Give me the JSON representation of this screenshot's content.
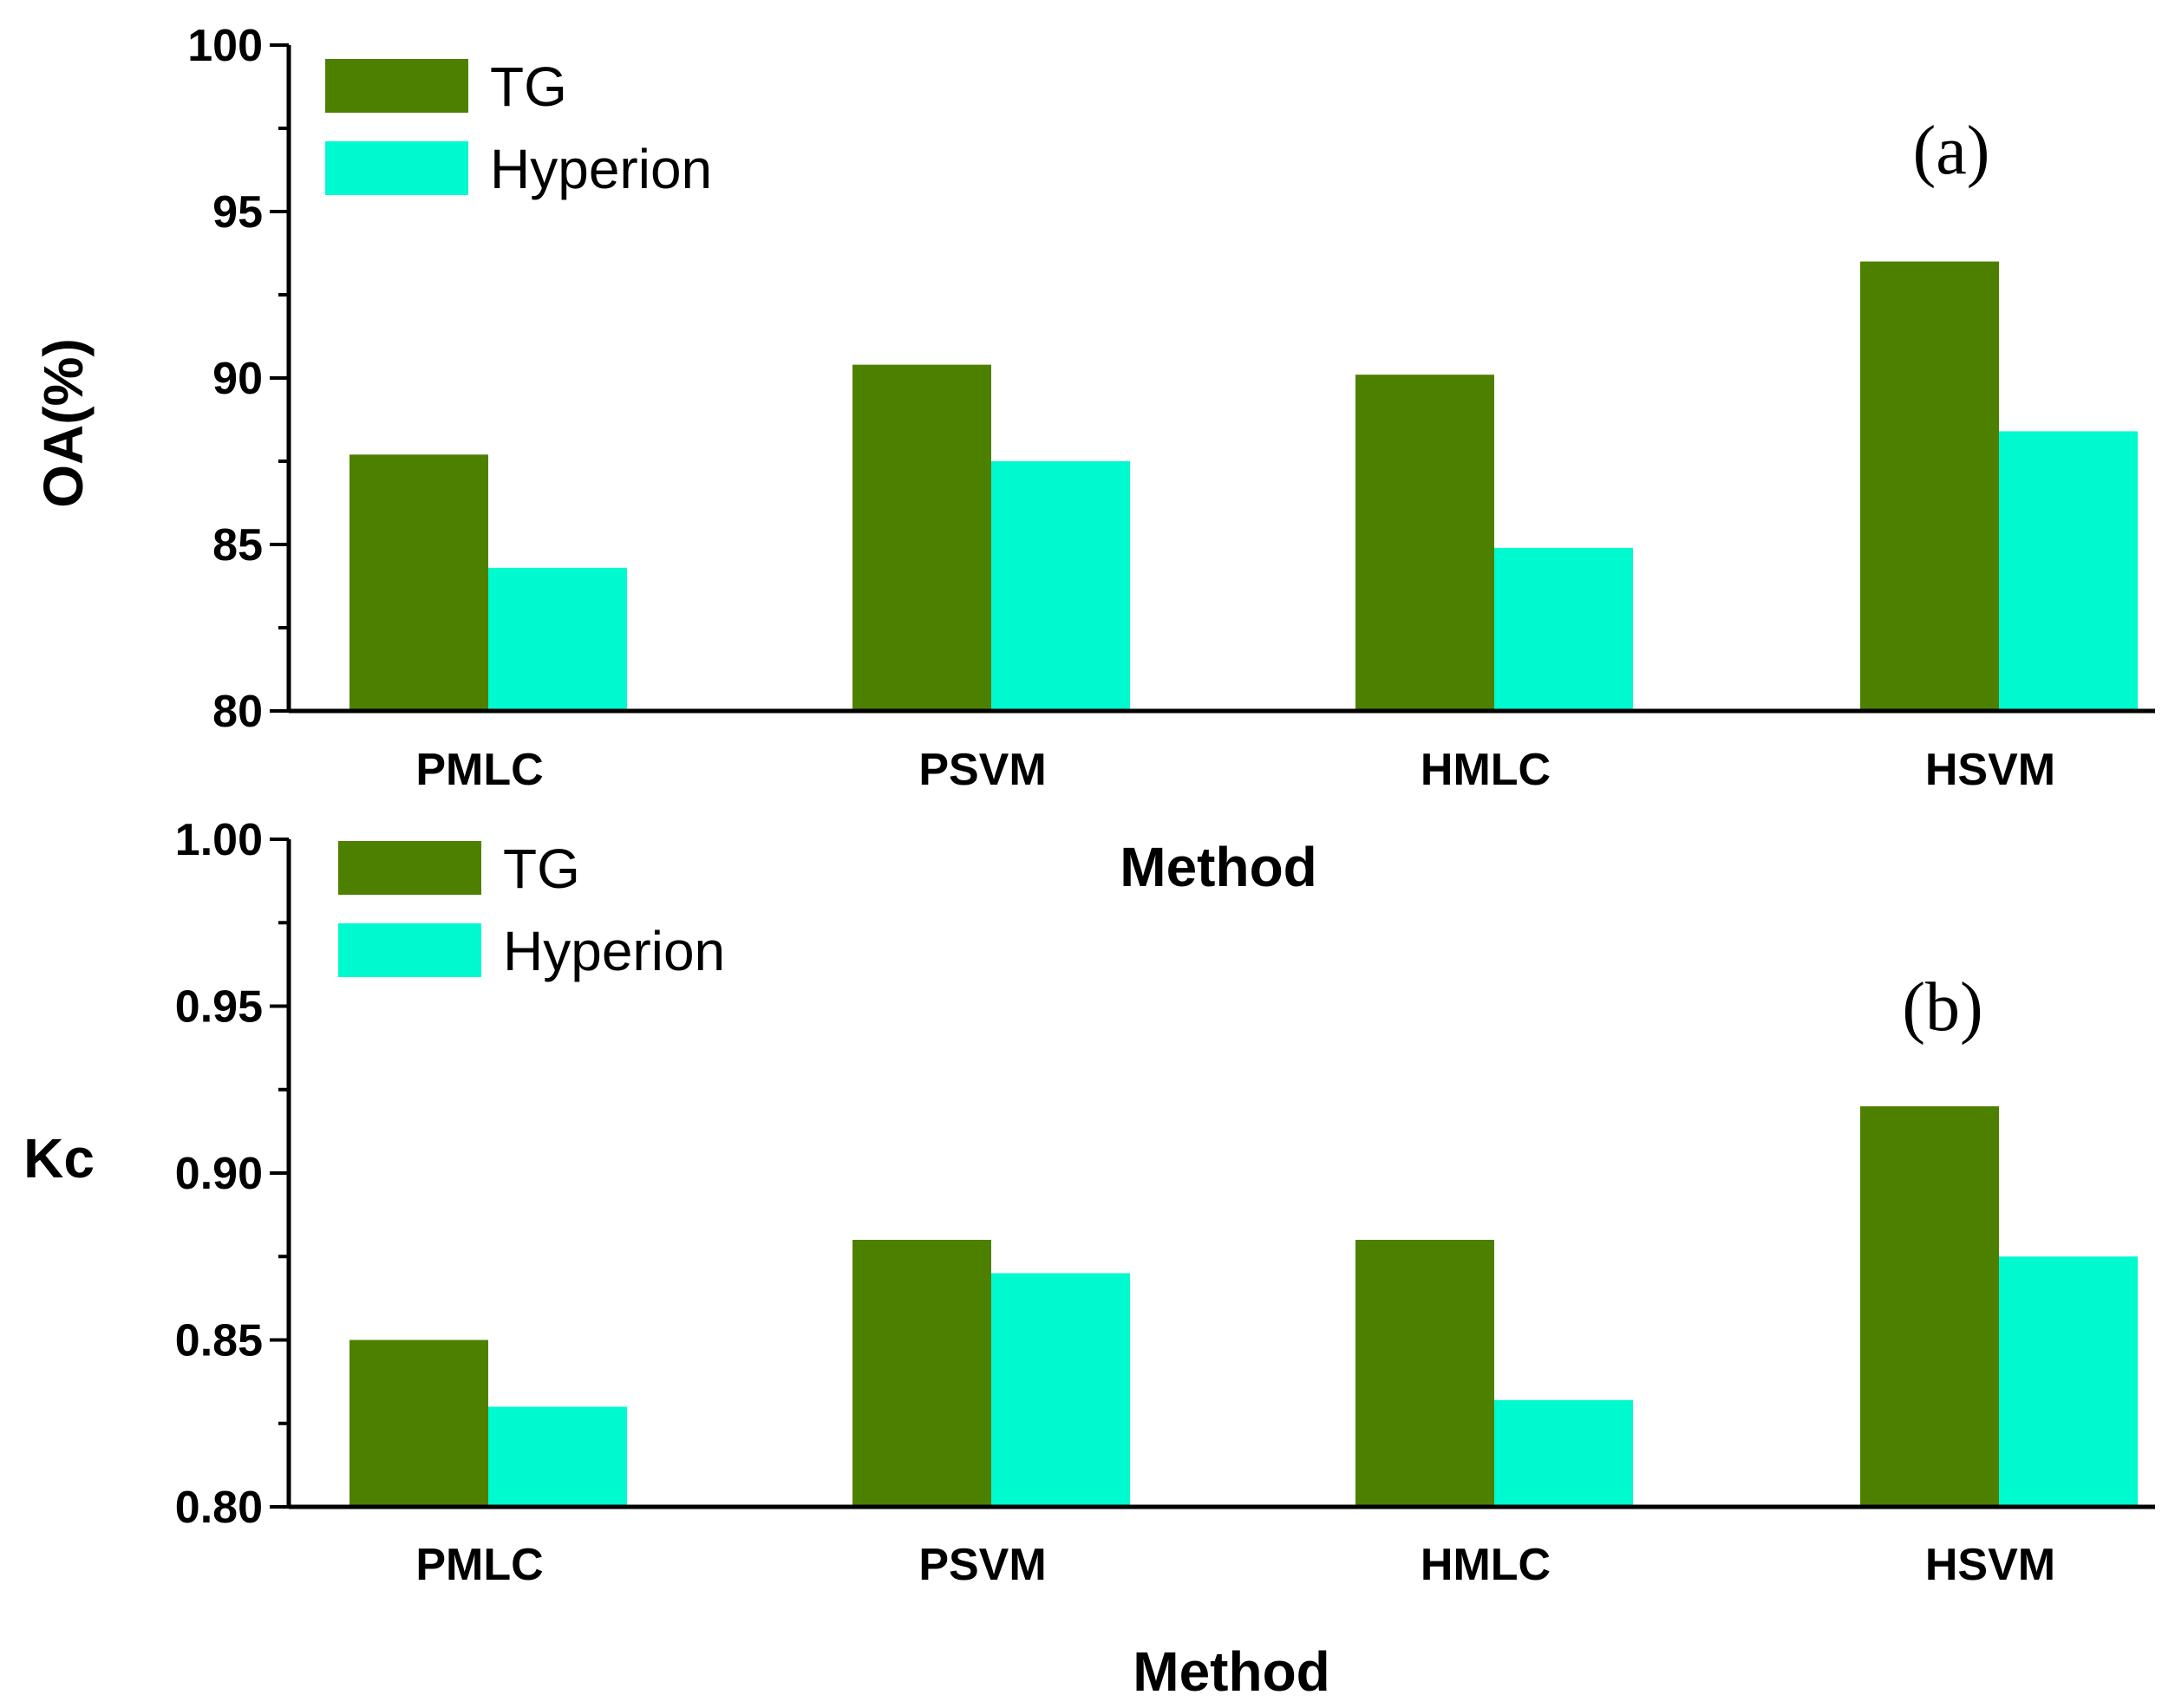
{
  "chart_data": [
    {
      "type": "bar",
      "panel_label": "(a)",
      "categories": [
        "PMLC",
        "PSVM",
        "HMLC",
        "HSVM"
      ],
      "series": [
        {
          "name": "TG",
          "color": "#4e8000",
          "values": [
            87.7,
            90.4,
            90.1,
            93.5
          ]
        },
        {
          "name": "Hyperion",
          "color": "#00fad0",
          "values": [
            84.3,
            87.5,
            84.9,
            88.4
          ]
        }
      ],
      "xlabel": "Method",
      "ylabel": "OA(%)",
      "ylim": [
        80,
        100
      ],
      "yticks": [
        "80",
        "85",
        "90",
        "95",
        "100"
      ],
      "legend_position": "top-left",
      "grid": false
    },
    {
      "type": "bar",
      "panel_label": "(b)",
      "categories": [
        "PMLC",
        "PSVM",
        "HMLC",
        "HSVM"
      ],
      "series": [
        {
          "name": "TG",
          "color": "#4e8000",
          "values": [
            0.85,
            0.88,
            0.88,
            0.92
          ]
        },
        {
          "name": "Hyperion",
          "color": "#00fad0",
          "values": [
            0.83,
            0.87,
            0.832,
            0.875
          ]
        }
      ],
      "xlabel": "Method",
      "ylabel": "Kc",
      "ylim": [
        0.8,
        1.0
      ],
      "yticks": [
        "0.80",
        "0.85",
        "0.90",
        "0.95",
        "1.00"
      ],
      "legend_position": "top-left",
      "grid": false
    }
  ]
}
